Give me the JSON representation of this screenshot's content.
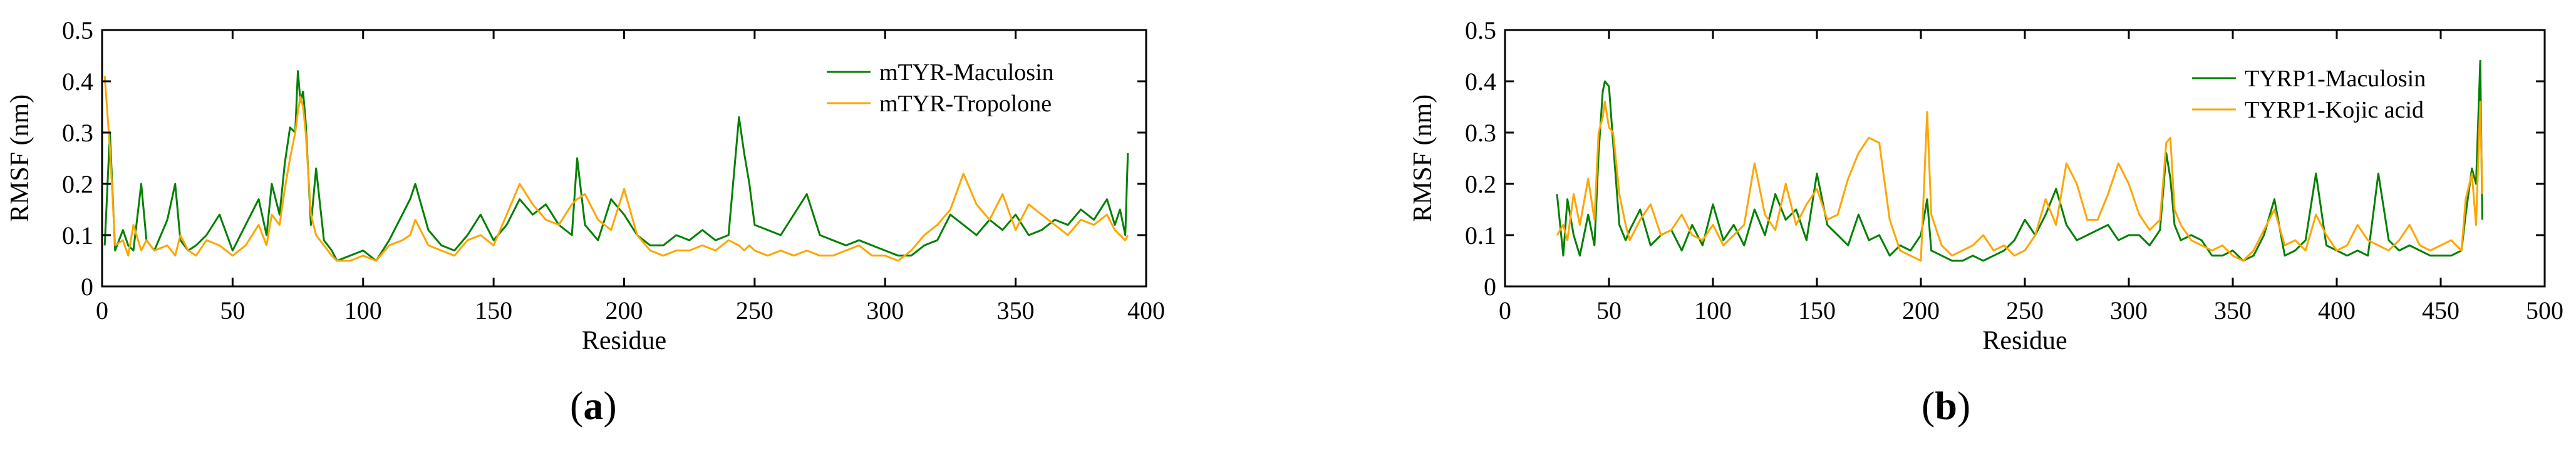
{
  "chart_data": [
    {
      "type": "line",
      "panel_label": "a",
      "xlabel": "Residue",
      "ylabel": "RMSF (nm)",
      "xlim": [
        0,
        400
      ],
      "ylim": [
        0,
        0.5
      ],
      "xticks": [
        0,
        50,
        100,
        150,
        200,
        250,
        300,
        350,
        400
      ],
      "yticks": [
        0,
        0.1,
        0.2,
        0.3,
        0.4,
        0.5
      ],
      "grid": false,
      "legend_position": "top-right",
      "series": [
        {
          "name": "mTYR-Maculosin",
          "color": "#008000",
          "x": [
            1,
            3,
            5,
            8,
            10,
            12,
            15,
            17,
            20,
            25,
            28,
            30,
            33,
            36,
            40,
            45,
            50,
            55,
            60,
            63,
            65,
            68,
            70,
            72,
            74,
            75,
            76,
            77,
            78,
            80,
            82,
            85,
            88,
            90,
            95,
            100,
            105,
            110,
            115,
            118,
            120,
            125,
            130,
            135,
            140,
            145,
            150,
            155,
            160,
            165,
            170,
            175,
            180,
            182,
            185,
            190,
            195,
            200,
            205,
            210,
            215,
            220,
            225,
            230,
            235,
            240,
            244,
            246,
            248,
            250,
            255,
            260,
            265,
            270,
            275,
            280,
            285,
            290,
            295,
            300,
            305,
            310,
            315,
            320,
            325,
            330,
            335,
            340,
            345,
            350,
            355,
            360,
            365,
            370,
            375,
            380,
            385,
            388,
            390,
            392,
            393
          ],
          "y": [
            0.08,
            0.3,
            0.07,
            0.11,
            0.08,
            0.07,
            0.2,
            0.09,
            0.07,
            0.13,
            0.2,
            0.09,
            0.07,
            0.08,
            0.1,
            0.14,
            0.07,
            0.12,
            0.17,
            0.1,
            0.2,
            0.14,
            0.24,
            0.31,
            0.3,
            0.42,
            0.36,
            0.38,
            0.32,
            0.12,
            0.23,
            0.09,
            0.07,
            0.05,
            0.06,
            0.07,
            0.05,
            0.09,
            0.14,
            0.17,
            0.2,
            0.11,
            0.08,
            0.07,
            0.1,
            0.14,
            0.09,
            0.12,
            0.17,
            0.14,
            0.16,
            0.12,
            0.1,
            0.25,
            0.12,
            0.09,
            0.17,
            0.14,
            0.1,
            0.08,
            0.08,
            0.1,
            0.09,
            0.11,
            0.09,
            0.1,
            0.33,
            0.26,
            0.2,
            0.12,
            0.11,
            0.1,
            0.14,
            0.18,
            0.1,
            0.09,
            0.08,
            0.09,
            0.08,
            0.07,
            0.06,
            0.06,
            0.08,
            0.09,
            0.14,
            0.12,
            0.1,
            0.13,
            0.11,
            0.14,
            0.1,
            0.11,
            0.13,
            0.12,
            0.15,
            0.13,
            0.17,
            0.12,
            0.15,
            0.1,
            0.26
          ]
        },
        {
          "name": "mTYR-Tropolone",
          "color": "#FFA500",
          "x": [
            1,
            3,
            5,
            8,
            10,
            12,
            15,
            17,
            20,
            25,
            28,
            30,
            33,
            36,
            40,
            45,
            50,
            55,
            60,
            63,
            65,
            68,
            70,
            72,
            74,
            75,
            76,
            77,
            78,
            80,
            82,
            85,
            88,
            90,
            95,
            100,
            105,
            110,
            115,
            118,
            120,
            125,
            130,
            135,
            140,
            145,
            150,
            155,
            160,
            165,
            170,
            175,
            180,
            182,
            185,
            190,
            195,
            200,
            205,
            210,
            215,
            220,
            225,
            230,
            235,
            240,
            244,
            246,
            248,
            250,
            255,
            260,
            265,
            270,
            275,
            280,
            285,
            290,
            295,
            300,
            305,
            310,
            315,
            320,
            325,
            330,
            335,
            340,
            345,
            350,
            355,
            360,
            365,
            370,
            375,
            380,
            385,
            388,
            390,
            392,
            393
          ],
          "y": [
            0.41,
            0.27,
            0.08,
            0.09,
            0.06,
            0.12,
            0.07,
            0.09,
            0.07,
            0.08,
            0.06,
            0.1,
            0.07,
            0.06,
            0.09,
            0.08,
            0.06,
            0.08,
            0.12,
            0.08,
            0.14,
            0.12,
            0.19,
            0.25,
            0.3,
            0.34,
            0.37,
            0.35,
            0.3,
            0.14,
            0.1,
            0.08,
            0.06,
            0.05,
            0.05,
            0.06,
            0.05,
            0.08,
            0.09,
            0.1,
            0.13,
            0.08,
            0.07,
            0.06,
            0.09,
            0.1,
            0.08,
            0.14,
            0.2,
            0.16,
            0.13,
            0.12,
            0.16,
            0.17,
            0.18,
            0.13,
            0.11,
            0.19,
            0.1,
            0.07,
            0.06,
            0.07,
            0.07,
            0.08,
            0.07,
            0.09,
            0.08,
            0.07,
            0.08,
            0.07,
            0.06,
            0.07,
            0.06,
            0.07,
            0.06,
            0.06,
            0.07,
            0.08,
            0.06,
            0.06,
            0.05,
            0.07,
            0.1,
            0.12,
            0.15,
            0.22,
            0.16,
            0.13,
            0.18,
            0.11,
            0.16,
            0.14,
            0.12,
            0.1,
            0.13,
            0.12,
            0.14,
            0.11,
            0.1,
            0.09,
            0.1
          ]
        }
      ]
    },
    {
      "type": "line",
      "panel_label": "b",
      "xlabel": "Residue",
      "ylabel": "RMSF (nm)",
      "xlim": [
        0,
        500
      ],
      "ylim": [
        0,
        0.5
      ],
      "xticks": [
        0,
        50,
        100,
        150,
        200,
        250,
        300,
        350,
        400,
        450,
        500
      ],
      "yticks": [
        0,
        0.1,
        0.2,
        0.3,
        0.4,
        0.5
      ],
      "grid": false,
      "legend_position": "top-right",
      "series": [
        {
          "name": "TYRP1-Maculosin",
          "color": "#008000",
          "x": [
            25,
            28,
            30,
            33,
            36,
            40,
            43,
            45,
            47,
            48,
            50,
            52,
            55,
            58,
            60,
            65,
            70,
            75,
            80,
            85,
            90,
            95,
            100,
            105,
            110,
            115,
            120,
            125,
            130,
            135,
            140,
            145,
            150,
            155,
            160,
            165,
            170,
            175,
            180,
            185,
            190,
            195,
            200,
            203,
            205,
            210,
            215,
            220,
            225,
            230,
            235,
            240,
            245,
            250,
            255,
            260,
            265,
            270,
            275,
            280,
            285,
            290,
            295,
            300,
            305,
            310,
            315,
            318,
            320,
            322,
            325,
            330,
            335,
            340,
            345,
            350,
            355,
            360,
            365,
            370,
            375,
            380,
            385,
            390,
            395,
            400,
            405,
            410,
            415,
            420,
            425,
            430,
            435,
            440,
            445,
            450,
            455,
            460,
            462,
            465,
            467,
            469,
            470
          ],
          "y": [
            0.18,
            0.06,
            0.17,
            0.1,
            0.06,
            0.14,
            0.08,
            0.26,
            0.38,
            0.4,
            0.39,
            0.28,
            0.12,
            0.09,
            0.11,
            0.15,
            0.08,
            0.1,
            0.11,
            0.07,
            0.12,
            0.08,
            0.16,
            0.09,
            0.12,
            0.08,
            0.15,
            0.1,
            0.18,
            0.13,
            0.15,
            0.09,
            0.22,
            0.12,
            0.1,
            0.08,
            0.14,
            0.09,
            0.1,
            0.06,
            0.08,
            0.07,
            0.1,
            0.17,
            0.07,
            0.06,
            0.05,
            0.05,
            0.06,
            0.05,
            0.06,
            0.07,
            0.09,
            0.13,
            0.1,
            0.14,
            0.19,
            0.12,
            0.09,
            0.1,
            0.11,
            0.12,
            0.09,
            0.1,
            0.1,
            0.08,
            0.11,
            0.26,
            0.21,
            0.12,
            0.09,
            0.1,
            0.09,
            0.06,
            0.06,
            0.07,
            0.05,
            0.06,
            0.1,
            0.17,
            0.06,
            0.07,
            0.09,
            0.22,
            0.08,
            0.07,
            0.06,
            0.07,
            0.06,
            0.22,
            0.09,
            0.07,
            0.08,
            0.07,
            0.06,
            0.06,
            0.06,
            0.07,
            0.14,
            0.23,
            0.2,
            0.44,
            0.13
          ]
        },
        {
          "name": "TYRP1-Kojic acid",
          "color": "#FFA500",
          "x": [
            25,
            28,
            30,
            33,
            36,
            40,
            43,
            45,
            47,
            48,
            50,
            52,
            55,
            58,
            60,
            65,
            70,
            75,
            80,
            85,
            90,
            95,
            100,
            105,
            110,
            115,
            120,
            125,
            130,
            135,
            140,
            145,
            150,
            155,
            160,
            165,
            170,
            175,
            180,
            185,
            190,
            195,
            200,
            203,
            205,
            210,
            215,
            220,
            225,
            230,
            235,
            240,
            245,
            250,
            255,
            260,
            265,
            270,
            275,
            280,
            285,
            290,
            295,
            300,
            305,
            310,
            315,
            318,
            320,
            322,
            325,
            330,
            335,
            340,
            345,
            350,
            355,
            360,
            365,
            370,
            375,
            380,
            385,
            390,
            395,
            400,
            405,
            410,
            415,
            420,
            425,
            430,
            435,
            440,
            445,
            450,
            455,
            460,
            462,
            465,
            467,
            469,
            470
          ],
          "y": [
            0.1,
            0.12,
            0.09,
            0.18,
            0.12,
            0.21,
            0.13,
            0.3,
            0.33,
            0.36,
            0.31,
            0.3,
            0.18,
            0.12,
            0.09,
            0.13,
            0.16,
            0.1,
            0.11,
            0.14,
            0.1,
            0.09,
            0.12,
            0.08,
            0.1,
            0.12,
            0.24,
            0.14,
            0.11,
            0.2,
            0.12,
            0.16,
            0.19,
            0.13,
            0.14,
            0.21,
            0.26,
            0.29,
            0.28,
            0.13,
            0.07,
            0.06,
            0.05,
            0.34,
            0.14,
            0.08,
            0.06,
            0.07,
            0.08,
            0.1,
            0.07,
            0.08,
            0.06,
            0.07,
            0.1,
            0.17,
            0.12,
            0.24,
            0.2,
            0.13,
            0.13,
            0.18,
            0.24,
            0.2,
            0.14,
            0.11,
            0.13,
            0.28,
            0.29,
            0.15,
            0.12,
            0.09,
            0.08,
            0.07,
            0.08,
            0.06,
            0.05,
            0.07,
            0.11,
            0.15,
            0.08,
            0.09,
            0.07,
            0.14,
            0.1,
            0.07,
            0.08,
            0.12,
            0.09,
            0.08,
            0.07,
            0.09,
            0.12,
            0.08,
            0.07,
            0.08,
            0.09,
            0.07,
            0.17,
            0.22,
            0.12,
            0.36,
            0.18
          ]
        }
      ]
    }
  ]
}
